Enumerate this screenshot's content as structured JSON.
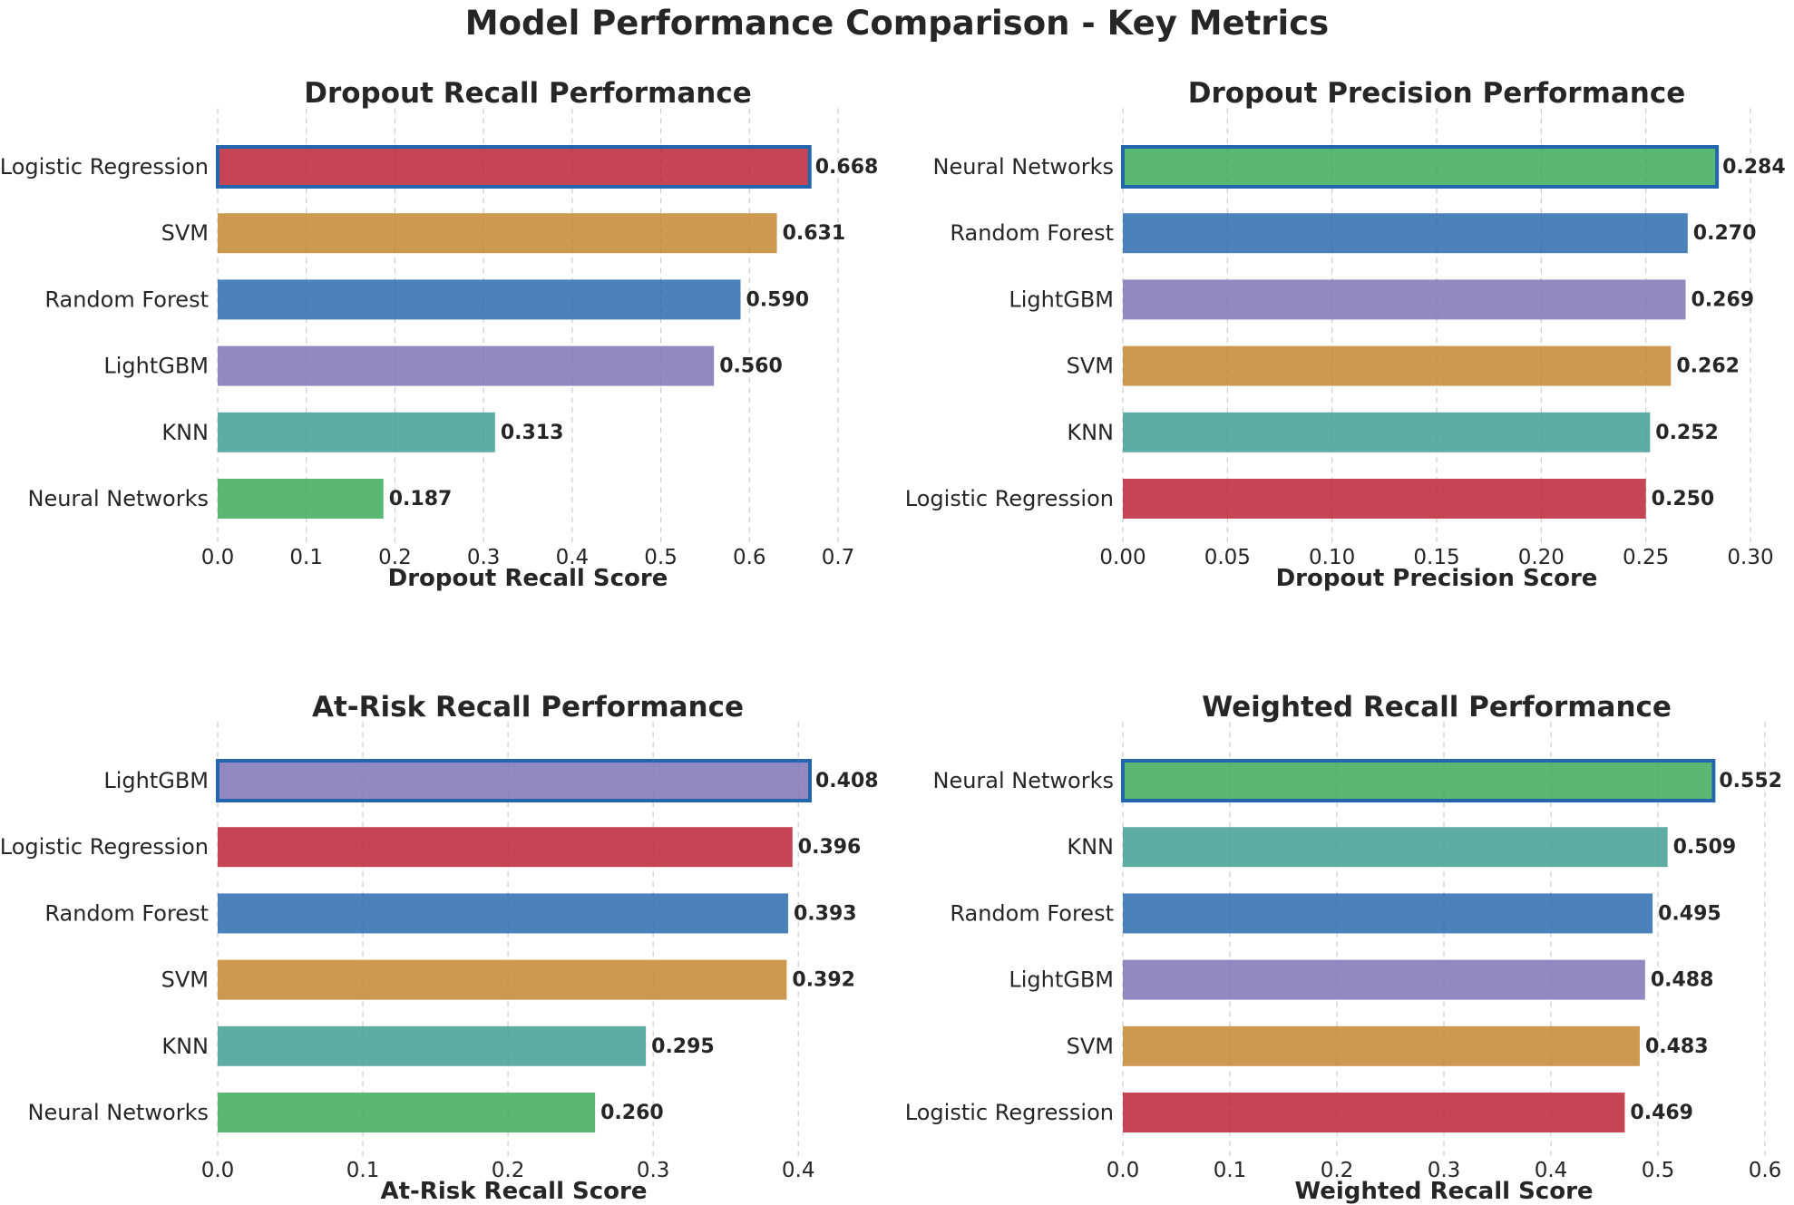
{
  "title": "Model Performance Comparison - Key Metrics",
  "colors": {
    "Logistic Regression": "#b91c2e",
    "SVM": "#c2822a",
    "Random Forest": "#2466ad",
    "LightGBM": "#7b6fb5",
    "KNN": "#3a9b90",
    "Neural Networks": "#34a853",
    "highlight_edge": "#2466ad"
  },
  "chart_data": [
    {
      "type": "bar",
      "orientation": "horizontal",
      "title": "Dropout Recall Performance",
      "xlabel": "Dropout Recall Score",
      "categories": [
        "Logistic Regression",
        "SVM",
        "Random Forest",
        "LightGBM",
        "KNN",
        "Neural Networks"
      ],
      "values": [
        0.668,
        0.631,
        0.59,
        0.56,
        0.313,
        0.187
      ],
      "value_labels": [
        "0.668",
        "0.631",
        "0.590",
        "0.560",
        "0.313",
        "0.187"
      ],
      "xlim": [
        0,
        0.7
      ],
      "xticks": [
        "0.0",
        "0.1",
        "0.2",
        "0.3",
        "0.4",
        "0.5",
        "0.6",
        "0.7"
      ],
      "xtick_values": [
        0,
        0.1,
        0.2,
        0.3,
        0.4,
        0.5,
        0.6,
        0.7
      ],
      "highlight": "Logistic Regression",
      "grid": "x-dashed"
    },
    {
      "type": "bar",
      "orientation": "horizontal",
      "title": "Dropout Precision Performance",
      "xlabel": "Dropout Precision Score",
      "categories": [
        "Neural Networks",
        "Random Forest",
        "LightGBM",
        "SVM",
        "KNN",
        "Logistic Regression"
      ],
      "values": [
        0.284,
        0.27,
        0.269,
        0.262,
        0.252,
        0.25
      ],
      "value_labels": [
        "0.284",
        "0.270",
        "0.269",
        "0.262",
        "0.252",
        "0.250"
      ],
      "xlim": [
        0,
        0.3
      ],
      "xticks": [
        "0.00",
        "0.05",
        "0.10",
        "0.15",
        "0.20",
        "0.25",
        "0.30"
      ],
      "xtick_values": [
        0,
        0.05,
        0.1,
        0.15,
        0.2,
        0.25,
        0.3
      ],
      "highlight": "Neural Networks",
      "grid": "x-dashed"
    },
    {
      "type": "bar",
      "orientation": "horizontal",
      "title": "At-Risk Recall Performance",
      "xlabel": "At-Risk Recall Score",
      "categories": [
        "LightGBM",
        "Logistic Regression",
        "Random Forest",
        "SVM",
        "KNN",
        "Neural Networks"
      ],
      "values": [
        0.408,
        0.396,
        0.393,
        0.392,
        0.295,
        0.26
      ],
      "value_labels": [
        "0.408",
        "0.396",
        "0.393",
        "0.392",
        "0.295",
        "0.260"
      ],
      "xlim": [
        0,
        0.408
      ],
      "xticks": [
        "0.0",
        "0.1",
        "0.2",
        "0.3",
        "0.4"
      ],
      "xtick_values": [
        0,
        0.1,
        0.2,
        0.3,
        0.4
      ],
      "highlight": "LightGBM",
      "grid": "x-dashed"
    },
    {
      "type": "bar",
      "orientation": "horizontal",
      "title": "Weighted Recall Performance",
      "xlabel": "Weighted Recall Score",
      "categories": [
        "Neural Networks",
        "KNN",
        "Random Forest",
        "LightGBM",
        "SVM",
        "Logistic Regression"
      ],
      "values": [
        0.552,
        0.509,
        0.495,
        0.488,
        0.483,
        0.469
      ],
      "value_labels": [
        "0.552",
        "0.509",
        "0.495",
        "0.488",
        "0.483",
        "0.469"
      ],
      "xlim": [
        0,
        0.6
      ],
      "xticks": [
        "0.0",
        "0.1",
        "0.2",
        "0.3",
        "0.4",
        "0.5",
        "0.6"
      ],
      "xtick_values": [
        0,
        0.1,
        0.2,
        0.3,
        0.4,
        0.5,
        0.6
      ],
      "highlight": "Neural Networks",
      "grid": "x-dashed"
    }
  ]
}
